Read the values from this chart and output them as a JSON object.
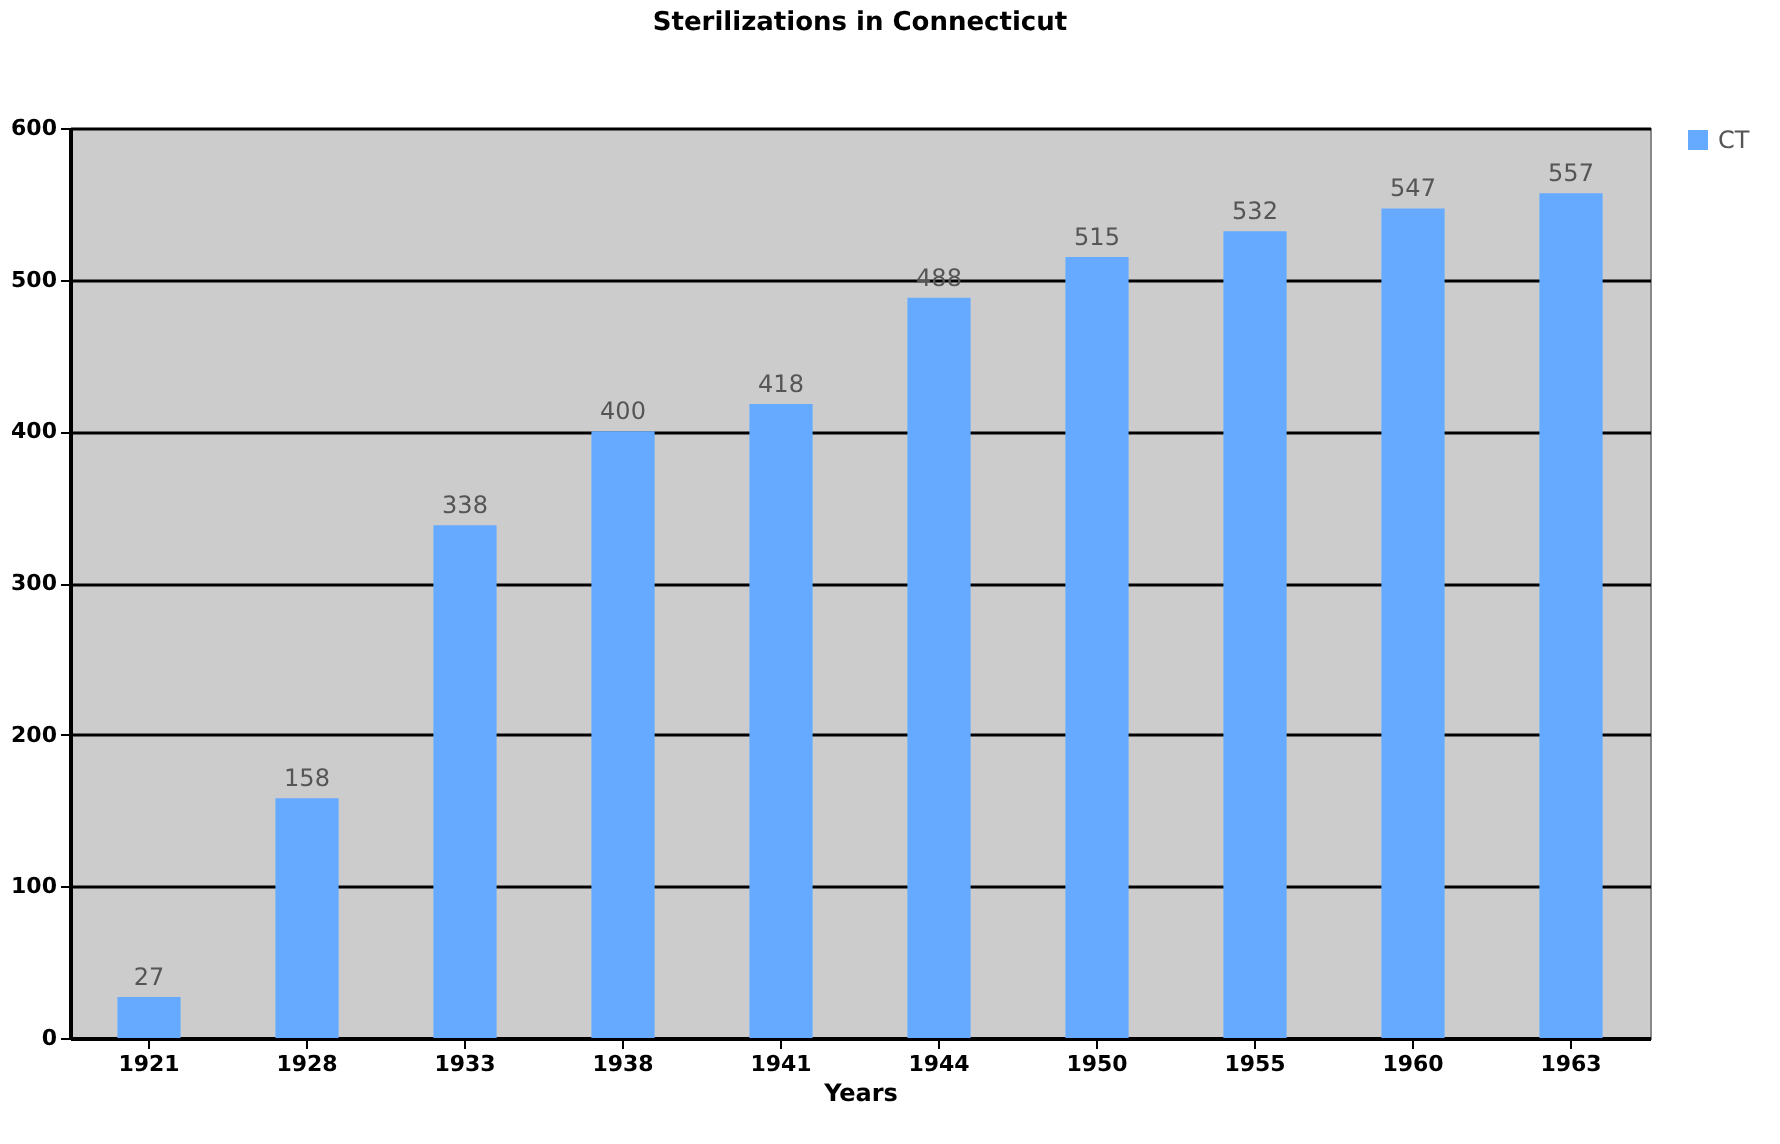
{
  "chart_data": {
    "type": "bar",
    "title": "Sterilizations in Connecticut",
    "xlabel": "Years",
    "categories": [
      "1921",
      "1928",
      "1933",
      "1938",
      "1941",
      "1944",
      "1950",
      "1955",
      "1960",
      "1963"
    ],
    "series": [
      {
        "name": "CT",
        "color": "#66aaff",
        "values": [
          27,
          158,
          338,
          400,
          418,
          488,
          515,
          532,
          547,
          557
        ]
      }
    ],
    "ylim": [
      0,
      600
    ],
    "yticks": [
      0,
      100,
      200,
      300,
      400,
      500,
      600
    ],
    "grid": "y",
    "legend": "right",
    "data_labels": true
  }
}
